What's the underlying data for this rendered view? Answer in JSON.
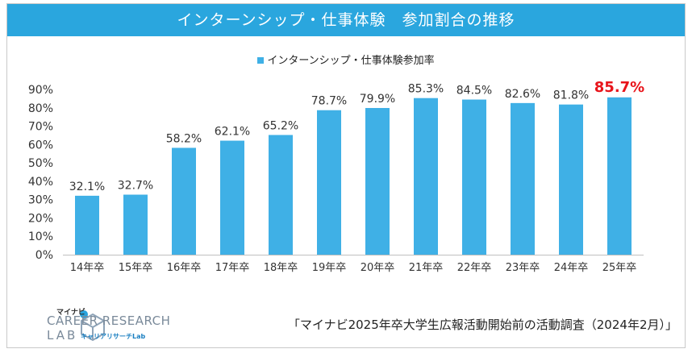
{
  "header": {
    "title": "インターンシップ・仕事体験　参加割合の推移"
  },
  "chart_data": {
    "type": "bar",
    "legend": "インターンシップ・仕事体験参加率",
    "categories": [
      "14年卒",
      "15年卒",
      "16年卒",
      "17年卒",
      "18年卒",
      "19年卒",
      "20年卒",
      "21年卒",
      "22年卒",
      "23年卒",
      "24年卒",
      "25年卒"
    ],
    "series": [
      {
        "name": "インターンシップ・仕事体験参加率",
        "values": [
          32.1,
          32.7,
          58.2,
          62.1,
          65.2,
          78.7,
          79.9,
          85.3,
          84.5,
          82.6,
          81.8,
          85.7
        ]
      }
    ],
    "data_labels": [
      "32.1%",
      "32.7%",
      "58.2%",
      "62.1%",
      "65.2%",
      "78.7%",
      "79.9%",
      "85.3%",
      "84.5%",
      "82.6%",
      "81.8%",
      "85.7%"
    ],
    "yticks": [
      "0%",
      "10%",
      "20%",
      "30%",
      "40%",
      "50%",
      "60%",
      "70%",
      "80%",
      "90%"
    ],
    "ylim": [
      0,
      90
    ],
    "grid": false,
    "highlight_index": 11,
    "colors": {
      "bar": "#3fb0e6",
      "highlight_label": "#e8141b",
      "label": "#333333"
    }
  },
  "branding": {
    "logo_small": "マイナビ",
    "logo_main": "CAREER RESEARCH",
    "logo_lab": "LAB",
    "logo_sub": "キャリアリサーチLab"
  },
  "source": "「マイナビ2025年卒大学生広報活動開始前の活動調査（2024年2月）」",
  "colors": {
    "title_bar": "#2aa6de"
  }
}
